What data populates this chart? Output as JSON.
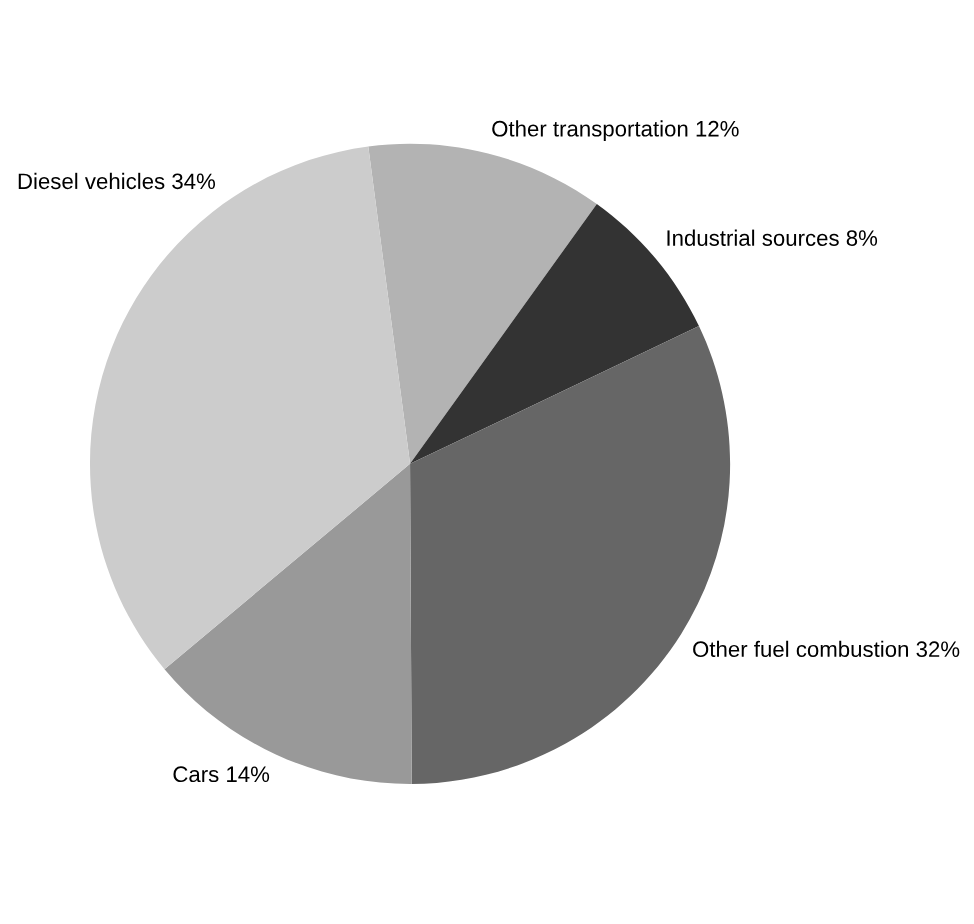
{
  "chart_data": {
    "type": "pie",
    "categories": [
      "Other transportation",
      "Industrial sources",
      "Other fuel combustion",
      "Cars",
      "Diesel vehicles"
    ],
    "values": [
      12,
      8,
      32,
      14,
      34
    ],
    "value_labels": [
      "12%",
      "8%",
      "32%",
      "14%",
      "34%"
    ],
    "colors": [
      "#b3b3b3",
      "#333333",
      "#666666",
      "#999999",
      "#cccccc"
    ],
    "legend": false
  }
}
